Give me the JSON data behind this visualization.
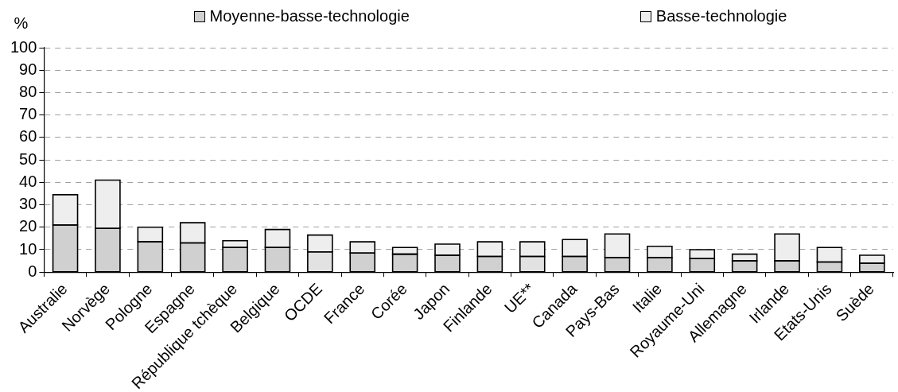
{
  "chart_data": {
    "type": "bar",
    "stacked": true,
    "ylabel": "%",
    "categories": [
      "Australie",
      "Norvège",
      "Pologne",
      "Espagne",
      "République tchèque",
      "Belgique",
      "OCDE",
      "France",
      "Corée",
      "Japon",
      "Finlande",
      "UE**",
      "Canada",
      "Pays-Bas",
      "Italie",
      "Royaume-Uni",
      "Allemagne",
      "Irlande",
      "Etats-Unis",
      "Suède"
    ],
    "series": [
      {
        "name": "Moyenne-basse-technologie",
        "color": "#d0d0d0",
        "colors": [
          "#d0d0d0",
          "#d0d0d0",
          "#d0d0d0",
          "#d0d0d0",
          "#d0d0d0",
          "#d0d0d0",
          "#e2e2e2",
          "#d0d0d0",
          "#d0d0d0",
          "#d0d0d0",
          "#d0d0d0",
          "#e2e2e2",
          "#d0d0d0",
          "#d0d0d0",
          "#d0d0d0",
          "#d0d0d0",
          "#d0d0d0",
          "#d0d0d0",
          "#d0d0d0",
          "#d0d0d0"
        ],
        "values": [
          21,
          19.5,
          13.5,
          13,
          11,
          11,
          9,
          8.5,
          8,
          7.5,
          7,
          7,
          7,
          6.5,
          6.5,
          6,
          5,
          5,
          4.5,
          4
        ]
      },
      {
        "name": "Basse-technologie",
        "color": "#eeeeee",
        "values": [
          13.5,
          21.5,
          6.5,
          9,
          3,
          8,
          7.5,
          5,
          3,
          5,
          6.5,
          6.5,
          7.5,
          10.5,
          5,
          4,
          3,
          12,
          6.5,
          3.5
        ]
      }
    ],
    "ylim": [
      0,
      100
    ],
    "yticks": [
      0,
      10,
      20,
      30,
      40,
      50,
      60,
      70,
      80,
      90,
      100
    ],
    "grid": "y",
    "legend": "top"
  }
}
